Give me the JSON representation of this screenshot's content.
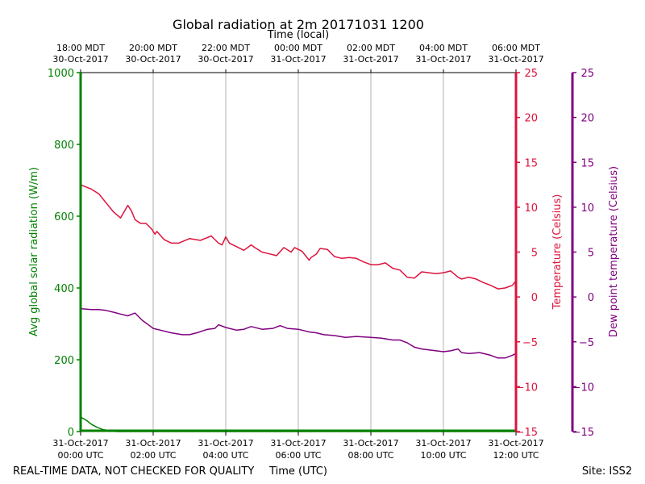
{
  "chart_data": {
    "type": "line",
    "title": "Global radiation at 2m 20171031 1200",
    "top_axis_label": "Time (local)",
    "bottom_axis_label": "Time (UTC)",
    "footer_left": "REAL-TIME DATA, NOT CHECKED FOR QUALITY",
    "footer_right": "Site: ISS2",
    "x_range_hours": [
      0,
      12
    ],
    "top_ticks": [
      {
        "h": 0,
        "line1": "18:00 MDT",
        "line2": "30-Oct-2017"
      },
      {
        "h": 2,
        "line1": "20:00 MDT",
        "line2": "30-Oct-2017"
      },
      {
        "h": 4,
        "line1": "22:00 MDT",
        "line2": "30-Oct-2017"
      },
      {
        "h": 6,
        "line1": "00:00 MDT",
        "line2": "31-Oct-2017"
      },
      {
        "h": 8,
        "line1": "02:00 MDT",
        "line2": "31-Oct-2017"
      },
      {
        "h": 10,
        "line1": "04:00 MDT",
        "line2": "31-Oct-2017"
      },
      {
        "h": 12,
        "line1": "06:00 MDT",
        "line2": "31-Oct-2017"
      }
    ],
    "bottom_ticks": [
      {
        "h": 0,
        "line1": "31-Oct-2017",
        "line2": "00:00 UTC"
      },
      {
        "h": 2,
        "line1": "31-Oct-2017",
        "line2": "02:00 UTC"
      },
      {
        "h": 4,
        "line1": "31-Oct-2017",
        "line2": "04:00 UTC"
      },
      {
        "h": 6,
        "line1": "31-Oct-2017",
        "line2": "06:00 UTC"
      },
      {
        "h": 8,
        "line1": "31-Oct-2017",
        "line2": "08:00 UTC"
      },
      {
        "h": 10,
        "line1": "31-Oct-2017",
        "line2": "10:00 UTC"
      },
      {
        "h": 12,
        "line1": "31-Oct-2017",
        "line2": "12:00 UTC"
      }
    ],
    "y_left": {
      "label": "Avg global solar radiation (W/m)",
      "range": [
        0,
        1000
      ],
      "ticks": [
        "0",
        "200",
        "400",
        "600",
        "800",
        "1000"
      ],
      "color": "#008000"
    },
    "y_right1": {
      "label": "Temperature (Celsius)",
      "range": [
        -15,
        25
      ],
      "ticks": [
        "−15",
        "−10",
        "−5",
        "0",
        "5",
        "10",
        "15",
        "20",
        "25"
      ],
      "color": "#dc143c"
    },
    "y_right2": {
      "label": "Dew point temperature (Celsius)",
      "range": [
        -15,
        25
      ],
      "ticks": [
        "−15",
        "−10",
        "−5",
        "0",
        "5",
        "10",
        "15",
        "20",
        "25"
      ],
      "color": "#800080"
    },
    "series": [
      {
        "name": "Avg global solar radiation",
        "axis": "left",
        "color": "#008000",
        "x": [
          0,
          0.1,
          0.2,
          0.3,
          0.45,
          0.6,
          0.8,
          1.0,
          2.0,
          4.0,
          6.0,
          8.0,
          10.0,
          12.0
        ],
        "y": [
          40,
          35,
          28,
          20,
          12,
          6,
          2,
          0,
          0,
          0,
          0,
          0,
          0,
          0
        ]
      },
      {
        "name": "Temperature",
        "axis": "right1",
        "color": "#dc143c",
        "x": [
          0,
          0.3,
          0.5,
          0.7,
          0.9,
          1.1,
          1.3,
          1.4,
          1.5,
          1.65,
          1.8,
          1.95,
          2.05,
          2.1,
          2.3,
          2.5,
          2.7,
          3.0,
          3.3,
          3.6,
          3.8,
          3.9,
          4.0,
          4.1,
          4.3,
          4.5,
          4.7,
          4.8,
          5.0,
          5.2,
          5.4,
          5.6,
          5.8,
          5.9,
          6.1,
          6.3,
          6.35,
          6.5,
          6.6,
          6.8,
          7.0,
          7.2,
          7.4,
          7.6,
          7.8,
          8.0,
          8.2,
          8.4,
          8.6,
          8.8,
          9.0,
          9.2,
          9.4,
          9.6,
          9.8,
          10.0,
          10.2,
          10.4,
          10.5,
          10.7,
          10.9,
          11.1,
          11.3,
          11.5,
          11.7,
          11.9,
          12.0
        ],
        "y": [
          12.5,
          12.0,
          11.5,
          10.5,
          9.5,
          8.8,
          10.2,
          9.6,
          8.6,
          8.2,
          8.2,
          7.6,
          7.0,
          7.3,
          6.4,
          6.0,
          6.0,
          6.5,
          6.3,
          6.8,
          6.0,
          5.8,
          6.7,
          6.0,
          5.6,
          5.2,
          5.8,
          5.5,
          5.0,
          4.8,
          4.6,
          5.5,
          5.0,
          5.5,
          5.1,
          4.1,
          4.4,
          4.8,
          5.4,
          5.3,
          4.5,
          4.3,
          4.4,
          4.3,
          3.9,
          3.6,
          3.6,
          3.8,
          3.2,
          3.0,
          2.2,
          2.1,
          2.8,
          2.7,
          2.6,
          2.7,
          2.9,
          2.2,
          2.0,
          2.2,
          2.0,
          1.6,
          1.3,
          0.9,
          1.0,
          1.3,
          1.8
        ]
      },
      {
        "name": "Dew point temperature",
        "axis": "right2",
        "color": "#800080",
        "x": [
          0,
          0.3,
          0.5,
          0.7,
          0.9,
          1.1,
          1.3,
          1.5,
          1.7,
          1.9,
          2.0,
          2.2,
          2.5,
          2.8,
          3.0,
          3.2,
          3.5,
          3.7,
          3.8,
          4.0,
          4.3,
          4.5,
          4.7,
          5.0,
          5.3,
          5.5,
          5.7,
          6.0,
          6.3,
          6.5,
          6.7,
          7.0,
          7.3,
          7.6,
          8.0,
          8.3,
          8.6,
          8.8,
          9.0,
          9.2,
          9.4,
          9.6,
          9.8,
          10.0,
          10.2,
          10.4,
          10.5,
          10.7,
          11.0,
          11.3,
          11.5,
          11.7,
          11.9,
          12.0
        ],
        "y": [
          -1.3,
          -1.4,
          -1.4,
          -1.5,
          -1.7,
          -1.9,
          -2.1,
          -1.8,
          -2.6,
          -3.2,
          -3.5,
          -3.7,
          -4.0,
          -4.2,
          -4.2,
          -4.0,
          -3.6,
          -3.5,
          -3.1,
          -3.4,
          -3.7,
          -3.6,
          -3.3,
          -3.6,
          -3.5,
          -3.2,
          -3.5,
          -3.6,
          -3.9,
          -4.0,
          -4.2,
          -4.3,
          -4.5,
          -4.4,
          -4.5,
          -4.6,
          -4.8,
          -4.8,
          -5.1,
          -5.6,
          -5.8,
          -5.9,
          -6.0,
          -6.1,
          -6.0,
          -5.8,
          -6.2,
          -6.3,
          -6.2,
          -6.5,
          -6.8,
          -6.8,
          -6.5,
          -6.3
        ]
      }
    ]
  }
}
